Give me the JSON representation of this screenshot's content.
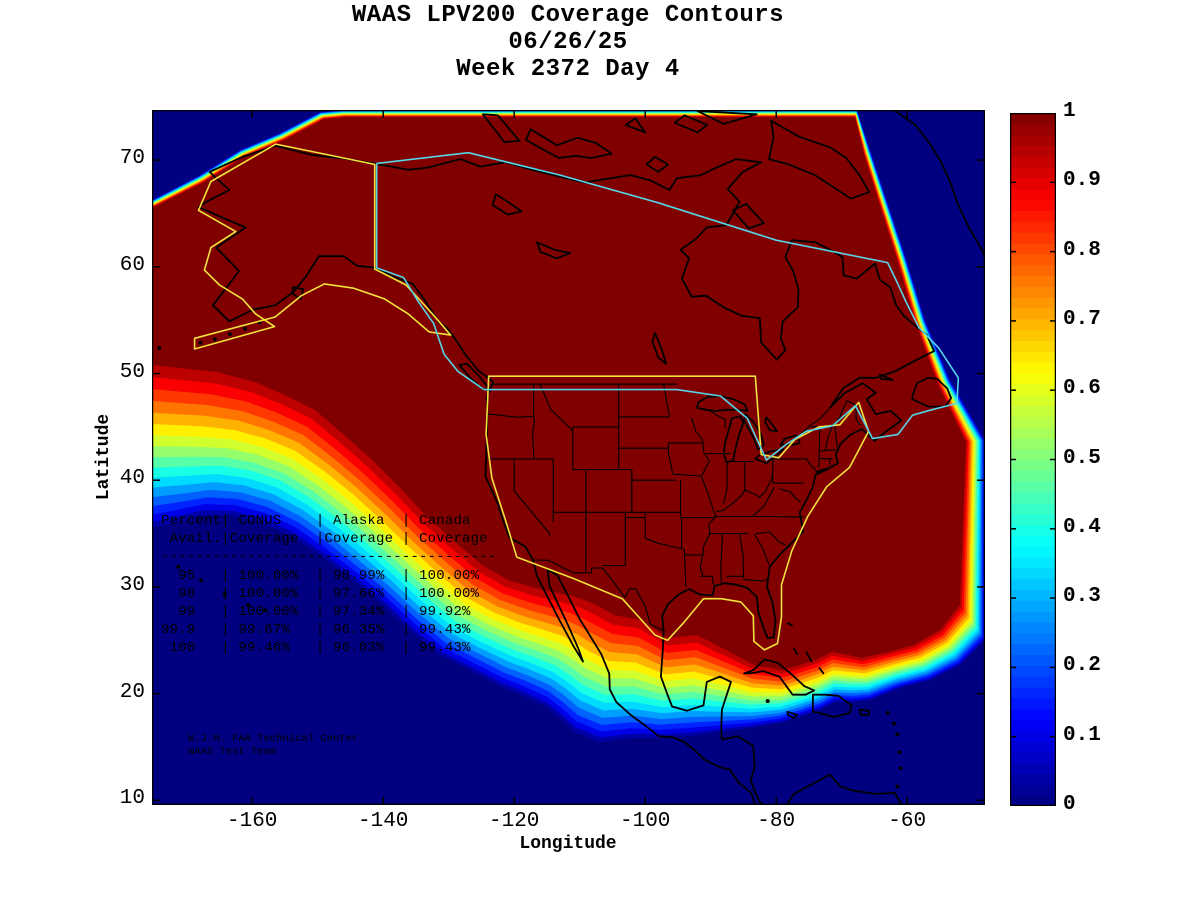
{
  "title": {
    "line1": "WAAS LPV200 Coverage Contours",
    "line2": "06/26/25",
    "line3": "Week 2372 Day 4"
  },
  "axes": {
    "xlabel": "Longitude",
    "ylabel": "Latitude",
    "x_ticks": [
      "-160",
      "-140",
      "-120",
      "-100",
      "-80",
      "-60"
    ],
    "y_ticks": [
      "10",
      "20",
      "30",
      "40",
      "50",
      "60",
      "70"
    ]
  },
  "colorbar": {
    "min": 0,
    "max": 1,
    "tick_labels": [
      "0",
      "0.1",
      "0.2",
      "0.3",
      "0.4",
      "0.5",
      "0.6",
      "0.7",
      "0.8",
      "0.9",
      "1"
    ],
    "colormap": "jet"
  },
  "overlay_table": {
    "lines": [
      "Percent| CONUS    | Alaska  | Canada",
      " Avail.|Coverage  |Coverage | Coverage",
      "---------------------------------------",
      "  95   | 100.00%  | 98.99%  | 100.00%",
      "  98   | 100.00%  | 97.66%  | 100.00%",
      "  99   | 100.00%  | 97.34%  | 99.92%",
      "99.9   | 99.67%   | 96.35%  | 99.43%",
      " 100   | 99.46%   | 96.03%  | 99.43%"
    ]
  },
  "credit": {
    "line1": "W.J.H. FAA Technical Center",
    "line2": "WAAS Test Team"
  },
  "chart_data": {
    "type": "heatmap",
    "subtype": "filled-contour coverage map over North America",
    "title": "WAAS LPV200 Coverage Contours",
    "date": "06/26/25",
    "gps_week": "Week 2372 Day 4",
    "xlabel": "Longitude",
    "ylabel": "Latitude",
    "xlim": [
      -175.3,
      -48.1
    ],
    "ylim": [
      9.5,
      74.7
    ],
    "grid": false,
    "colorbar": {
      "min": 0,
      "max": 1,
      "ticks": [
        0,
        0.1,
        0.2,
        0.3,
        0.4,
        0.5,
        0.6,
        0.7,
        0.8,
        0.9,
        1
      ],
      "colormap": "jet",
      "position": "right"
    },
    "regions_outlined": [
      {
        "name": "CONUS coverage boundary",
        "color": "yellow"
      },
      {
        "name": "Alaska coverage boundary",
        "color": "yellow"
      },
      {
        "name": "Canada coverage boundary",
        "color": "cyan"
      }
    ],
    "coverage_table": {
      "columns": [
        "Percent Avail.",
        "CONUS Coverage",
        "Alaska Coverage",
        "Canada Coverage"
      ],
      "rows": [
        [
          "95",
          "100.00%",
          "98.99%",
          "100.00%"
        ],
        [
          "98",
          "100.00%",
          "97.66%",
          "100.00%"
        ],
        [
          "99",
          "100.00%",
          "97.34%",
          "99.92%"
        ],
        [
          "99.9",
          "99.67%",
          "96.35%",
          "99.43%"
        ],
        [
          "100",
          "99.46%",
          "96.03%",
          "99.43%"
        ]
      ]
    },
    "annotations": [
      "W.J.H. FAA Technical Center",
      "WAAS Test Team"
    ],
    "description": "Coverage availability near 1.0 (dark red) over CONUS, Canada and Alaska, decaying through jet-colormap contour bands to 0 (dark blue) over the Pacific southwest, the Atlantic northeast and south of ~17N latitude."
  }
}
